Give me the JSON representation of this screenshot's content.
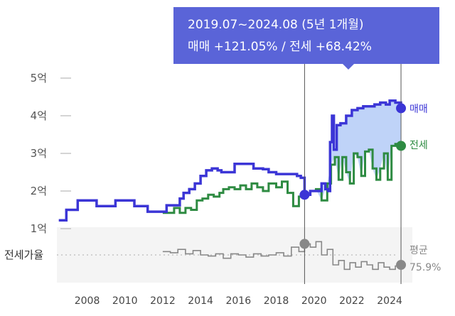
{
  "tooltip": {
    "line1": "2019.07~2024.08 (5년 1개월)",
    "line2": "매매 +121.05%  /  전세 +68.42%"
  },
  "legend": {
    "sale": "매매",
    "jeonse": "전세",
    "avg_label": "평균",
    "avg_value": "75.9%",
    "ratio_label": "전세가율"
  },
  "colors": {
    "sale": "#3b35d6",
    "jeonse": "#2e8b42",
    "ratio": "#888888",
    "fill": "#a9c4f5",
    "tooltip": "#5a64d8"
  },
  "chart_data": {
    "type": "line",
    "title": "",
    "xlabel": "",
    "ylabel": "",
    "x_ticks": [
      "2008",
      "2010",
      "2012",
      "2014",
      "2016",
      "2018",
      "2020",
      "2022",
      "2024"
    ],
    "y_ticks": [
      "1억",
      "2억",
      "3억",
      "4억",
      "5억"
    ],
    "xlim": [
      2006.4,
      2025.2
    ],
    "ylim": [
      1,
      5
    ],
    "grid": true,
    "selection": {
      "start": 2019.5,
      "end": 2024.6
    },
    "series": [
      {
        "name": "매매",
        "x": [
          2006.5,
          2006.8,
          2006.9,
          2007.3,
          2007.5,
          2008.3,
          2008.5,
          2009.3,
          2009.5,
          2010.3,
          2010.5,
          2011.0,
          2011.2,
          2012.0,
          2012.2,
          2012.6,
          2012.9,
          2013.1,
          2013.4,
          2013.7,
          2014.0,
          2014.3,
          2014.6,
          2014.9,
          2015.1,
          2015.5,
          2015.8,
          2016.1,
          2016.5,
          2016.8,
          2017.3,
          2017.6,
          2018.0,
          2018.4,
          2018.8,
          2019.1,
          2019.3,
          2019.5,
          2019.8,
          2020.1,
          2020.4,
          2020.6,
          2020.75,
          2020.85,
          2020.95,
          2021.05,
          2021.2,
          2021.4,
          2021.7,
          2022.0,
          2022.3,
          2022.6,
          2022.9,
          2023.2,
          2023.5,
          2023.8,
          2024.0,
          2024.3,
          2024.6
        ],
        "values": [
          1.22,
          1.22,
          1.5,
          1.5,
          1.75,
          1.75,
          1.6,
          1.6,
          1.75,
          1.75,
          1.6,
          1.6,
          1.45,
          1.45,
          1.62,
          1.62,
          1.8,
          1.95,
          2.05,
          2.2,
          2.4,
          2.55,
          2.6,
          2.55,
          2.5,
          2.5,
          2.72,
          2.72,
          2.72,
          2.6,
          2.58,
          2.5,
          2.45,
          2.45,
          2.45,
          2.4,
          2.35,
          1.9,
          2.0,
          2.0,
          2.2,
          2.05,
          2.0,
          3.3,
          4.0,
          3.1,
          3.75,
          3.8,
          4.0,
          4.15,
          4.2,
          4.25,
          4.25,
          4.3,
          4.35,
          4.3,
          4.4,
          4.35,
          4.2
        ]
      },
      {
        "name": "전세",
        "x": [
          2012.0,
          2012.3,
          2012.6,
          2012.9,
          2013.2,
          2013.5,
          2013.8,
          2014.1,
          2014.4,
          2014.7,
          2015.0,
          2015.2,
          2015.5,
          2015.8,
          2016.1,
          2016.4,
          2016.7,
          2017.0,
          2017.3,
          2017.6,
          2018.0,
          2018.3,
          2018.6,
          2018.9,
          2019.2,
          2019.5,
          2019.8,
          2020.1,
          2020.4,
          2020.7,
          2020.9,
          2021.1,
          2021.3,
          2021.5,
          2021.7,
          2021.9,
          2022.1,
          2022.3,
          2022.5,
          2022.7,
          2022.9,
          2023.1,
          2023.3,
          2023.5,
          2023.7,
          2023.9,
          2024.1,
          2024.3,
          2024.6
        ],
        "values": [
          1.42,
          1.42,
          1.55,
          1.42,
          1.55,
          1.5,
          1.75,
          1.8,
          1.9,
          1.85,
          1.95,
          2.05,
          2.1,
          2.05,
          2.15,
          2.05,
          2.2,
          2.1,
          2.0,
          2.2,
          2.1,
          2.25,
          1.95,
          1.6,
          1.85,
          1.9,
          2.0,
          2.05,
          1.75,
          2.2,
          2.7,
          2.9,
          2.3,
          2.9,
          2.5,
          2.2,
          3.0,
          2.9,
          2.4,
          3.05,
          3.1,
          2.6,
          2.3,
          2.6,
          3.0,
          2.3,
          3.2,
          3.25,
          3.2
        ]
      },
      {
        "name": "전세가율",
        "x": [
          2012.0,
          2012.4,
          2012.8,
          2013.2,
          2013.6,
          2014.0,
          2014.4,
          2014.8,
          2015.2,
          2015.6,
          2016.0,
          2016.4,
          2016.8,
          2017.2,
          2017.6,
          2018.0,
          2018.4,
          2018.8,
          2019.2,
          2019.5,
          2019.8,
          2020.1,
          2020.4,
          2020.7,
          2021.0,
          2021.3,
          2021.6,
          2021.9,
          2022.2,
          2022.5,
          2022.8,
          2023.1,
          2023.4,
          2023.7,
          2024.0,
          2024.3,
          2024.6
        ],
        "values": [
          88,
          87,
          90,
          86,
          89,
          85,
          84,
          86,
          82,
          86,
          85,
          83,
          86,
          84,
          85,
          87,
          84,
          92,
          88,
          95,
          92,
          97,
          85,
          90,
          76,
          80,
          72,
          78,
          74,
          79,
          76,
          72,
          78,
          74,
          72,
          75,
          76
        ]
      }
    ]
  }
}
